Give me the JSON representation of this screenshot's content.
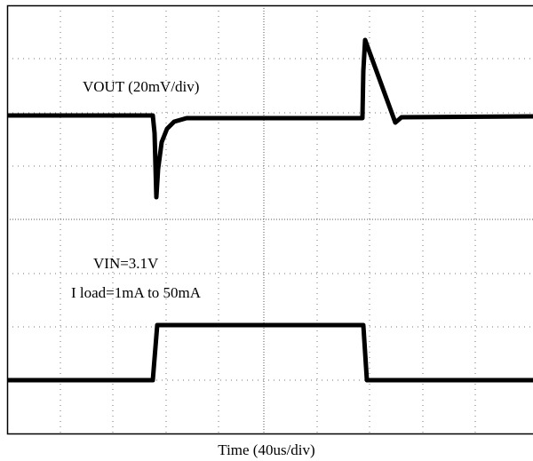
{
  "labels": {
    "vout": "VOUT (20mV/div)",
    "vin": "VIN=3.1V",
    "iload": "I load=1mA to 50mA",
    "xaxis": "Time (40us/div)"
  }
}
